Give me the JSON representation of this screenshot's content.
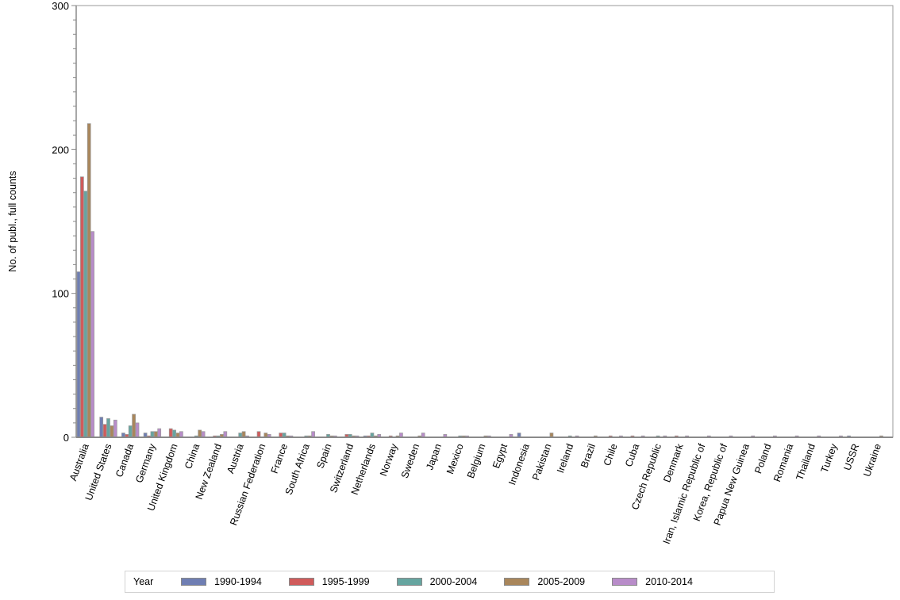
{
  "chart_data": {
    "type": "bar",
    "title": "",
    "xlabel": "",
    "ylabel": "No. of publ., full counts",
    "ylim": [
      0,
      300
    ],
    "yticks": [
      0,
      100,
      200,
      300
    ],
    "grid": false,
    "legend_position": "bottom",
    "legend_title": "Year",
    "categories": [
      "Australia",
      "United States",
      "Canada",
      "Germany",
      "United Kingdom",
      "China",
      "New Zealand",
      "Austria",
      "Russian Federation",
      "France",
      "South Africa",
      "Spain",
      "Switzerland",
      "Netherlands",
      "Norway",
      "Sweden",
      "Japan",
      "Mexico",
      "Belgium",
      "Egypt",
      "Indonesia",
      "Pakistan",
      "Ireland",
      "Brazil",
      "Chile",
      "Cuba",
      "Czech Republic",
      "Denmark",
      "Iran, Islamic Republic of",
      "Korea, Republic of",
      "Papua New Guinea",
      "Poland",
      "Romania",
      "Thailand",
      "Turkey",
      "USSR",
      "Ukraine"
    ],
    "series": [
      {
        "name": "1990-1994",
        "color": "#6f7eb3",
        "values": [
          115,
          14,
          3,
          3,
          0,
          0,
          0,
          0,
          0,
          0,
          0,
          0,
          0,
          1,
          0,
          0,
          0,
          0,
          0,
          0,
          3,
          0,
          0,
          0,
          0,
          0,
          0,
          0,
          0,
          0,
          0,
          0,
          0,
          0,
          0,
          1,
          0
        ]
      },
      {
        "name": "1995-1999",
        "color": "#d05b5b",
        "values": [
          181,
          9,
          2,
          1,
          6,
          0,
          1,
          0,
          4,
          3,
          0,
          0,
          2,
          1,
          1,
          0,
          0,
          0,
          0,
          0,
          0,
          0,
          0,
          0,
          1,
          1,
          0,
          1,
          0,
          0,
          0,
          0,
          0,
          0,
          0,
          0,
          0
        ]
      },
      {
        "name": "2000-2004",
        "color": "#66a5a0",
        "values": [
          171,
          13,
          8,
          4,
          5,
          1,
          1,
          3,
          0,
          3,
          1,
          2,
          2,
          3,
          0,
          0,
          0,
          1,
          0,
          0,
          0,
          0,
          1,
          0,
          0,
          0,
          1,
          0,
          0,
          0,
          0,
          0,
          0,
          0,
          0,
          0,
          0
        ]
      },
      {
        "name": "2005-2009",
        "color": "#a9865b",
        "values": [
          218,
          8,
          16,
          4,
          3,
          5,
          2,
          4,
          3,
          1,
          1,
          1,
          1,
          1,
          1,
          1,
          0,
          1,
          1,
          0,
          0,
          3,
          0,
          1,
          0,
          0,
          0,
          0,
          0,
          0,
          0,
          0,
          0,
          0,
          0,
          0,
          1
        ]
      },
      {
        "name": "2010-2014",
        "color": "#b88cc9",
        "values": [
          143,
          12,
          10,
          6,
          4,
          4,
          4,
          1,
          2,
          1,
          4,
          1,
          1,
          2,
          3,
          3,
          2,
          1,
          1,
          2,
          0,
          0,
          1,
          0,
          1,
          1,
          1,
          1,
          1,
          1,
          1,
          1,
          1,
          1,
          1,
          0,
          0
        ]
      }
    ]
  },
  "axis": {
    "y_tick_labels": [
      "0",
      "100",
      "200",
      "300"
    ]
  },
  "legend": {
    "title": "Year",
    "items": [
      {
        "label": "1990-1994",
        "color": "#6f7eb3"
      },
      {
        "label": "1995-1999",
        "color": "#d05b5b"
      },
      {
        "label": "2000-2004",
        "color": "#66a5a0"
      },
      {
        "label": "2005-2009",
        "color": "#a9865b"
      },
      {
        "label": "2010-2014",
        "color": "#b88cc9"
      }
    ]
  }
}
